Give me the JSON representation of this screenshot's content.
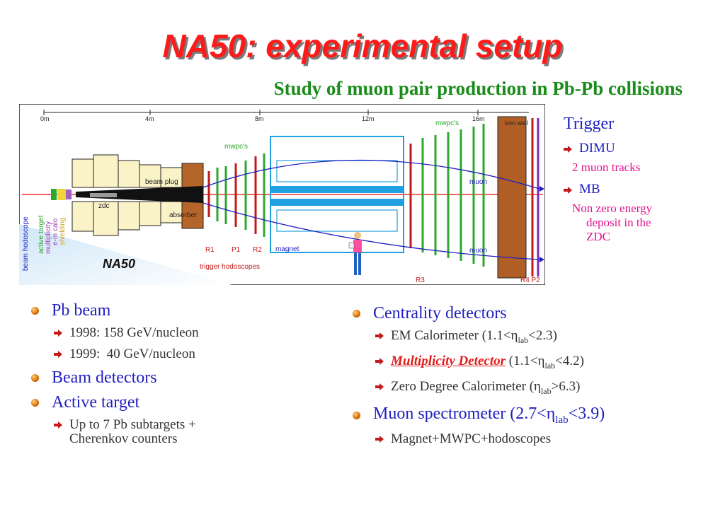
{
  "title": "NA50: experimental setup",
  "subtitle": "Study of muon pair production in Pb-Pb collisions",
  "diagram": {
    "scale": [
      "0m",
      "4m",
      "8m",
      "12m",
      "16m"
    ],
    "labels": {
      "beam_plug": "beam plug",
      "zdc": "zdc",
      "absorber": "absorber",
      "mwpcs_1": "mwpc's",
      "mwpcs_2": "mwpc's",
      "iron_wall": "iron wall",
      "muon_1": "muon",
      "muon_2": "muon",
      "magnet": "magnet",
      "r1": "R1",
      "p1": "P1",
      "r2": "R2",
      "r3": "R3",
      "r4p2": "R4 P2",
      "trigger_hodoscopes": "trigger hodoscopes",
      "beam_hodoscope": "beam hodoscope",
      "active_target": "active target",
      "multiplicity": "multiplicity",
      "em_calo": "e-m calo",
      "shielding": "shielding",
      "logo": "NA50"
    }
  },
  "trigger": {
    "heading": "Trigger",
    "dimu": "DIMU",
    "dimu_desc": "2 muon tracks",
    "mb": "MB",
    "mb_desc_1": "Non zero energy",
    "mb_desc_2": "deposit in the",
    "mb_desc_3": "ZDC"
  },
  "left": {
    "pb_beam": "Pb beam",
    "b1998": "1998: 158 GeV/nucleon",
    "b1999": "1999:  40 GeV/nucleon",
    "beam_det": "Beam detectors",
    "active_target": "Active target",
    "at_desc_1": "Up to 7 Pb subtargets +",
    "at_desc_2": "Cherenkov counters"
  },
  "right": {
    "centrality": "Centrality detectors",
    "em_label": "EM Calorimeter (1.1<η",
    "em_sub": "lab",
    "em_tail": "<2.3)",
    "mult_label": "Multiplicity Detector",
    "mult_range": " (1.1<η",
    "mult_sub": "lab",
    "mult_tail": "<4.2)",
    "zdc_label": "Zero Degree Calorimeter (η",
    "zdc_sub": "lab",
    "zdc_tail": ">6.3)",
    "muon_spec": "Muon spectrometer (2.7<η",
    "muon_sub": "lab",
    "muon_tail": "<3.9)",
    "magnet_desc": "Magnet+MWPC+hodoscopes"
  },
  "colors": {
    "title": "#ff1a1a",
    "subtitle": "#1a8c1a",
    "blue_text": "#1f1fc0",
    "pink_text": "#e0138c"
  }
}
